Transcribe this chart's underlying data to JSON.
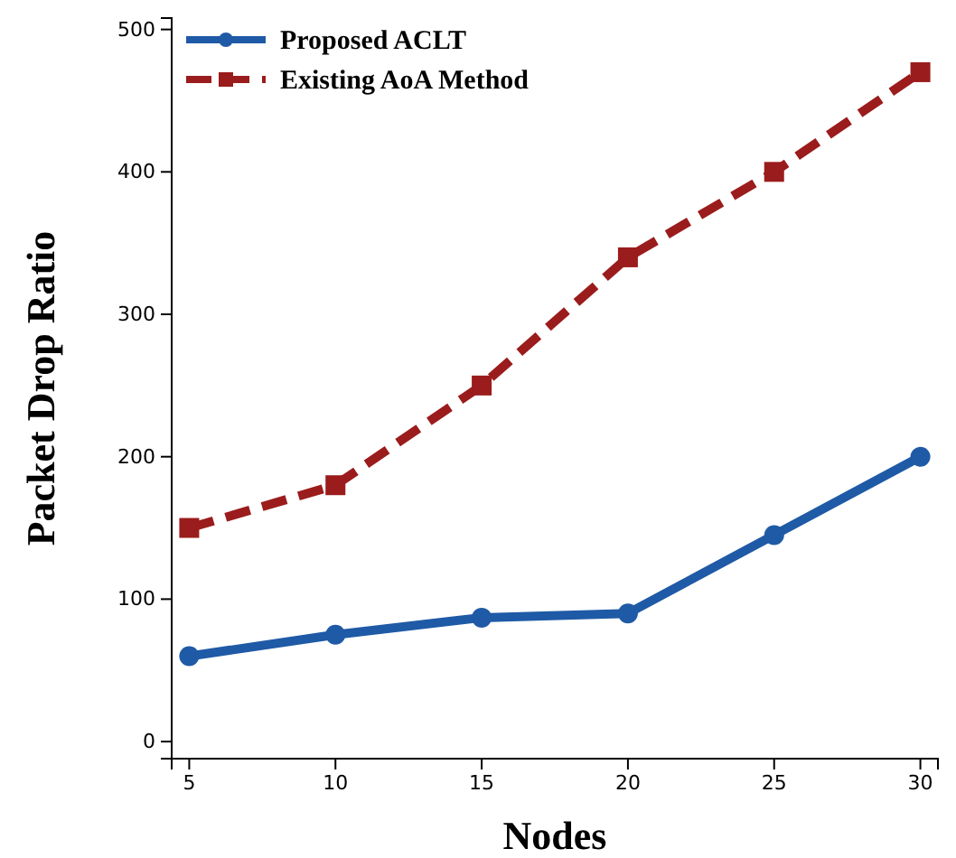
{
  "chart_data": {
    "type": "line",
    "xlabel": "Nodes",
    "ylabel": "Packet Drop Ratio",
    "x": [
      5,
      10,
      15,
      20,
      25,
      30
    ],
    "series": [
      {
        "name": "Proposed ACLT",
        "color": "#1f5aa6",
        "values": [
          60,
          75,
          87,
          90,
          145,
          200
        ],
        "marker": "circle",
        "line_style": "solid"
      },
      {
        "name": "Existing AoA Method",
        "color": "#9b1c1c",
        "values": [
          150,
          180,
          250,
          340,
          400,
          470
        ],
        "marker": "square",
        "line_style": "dashed"
      }
    ],
    "xlim": [
      4.4,
      30.6
    ],
    "xticks": [
      5,
      10,
      15,
      20,
      25,
      30
    ],
    "ylim": [
      -12,
      508
    ],
    "yticks": [
      0,
      100,
      200,
      300,
      400,
      500
    ],
    "grid": false,
    "legend": "top left"
  }
}
